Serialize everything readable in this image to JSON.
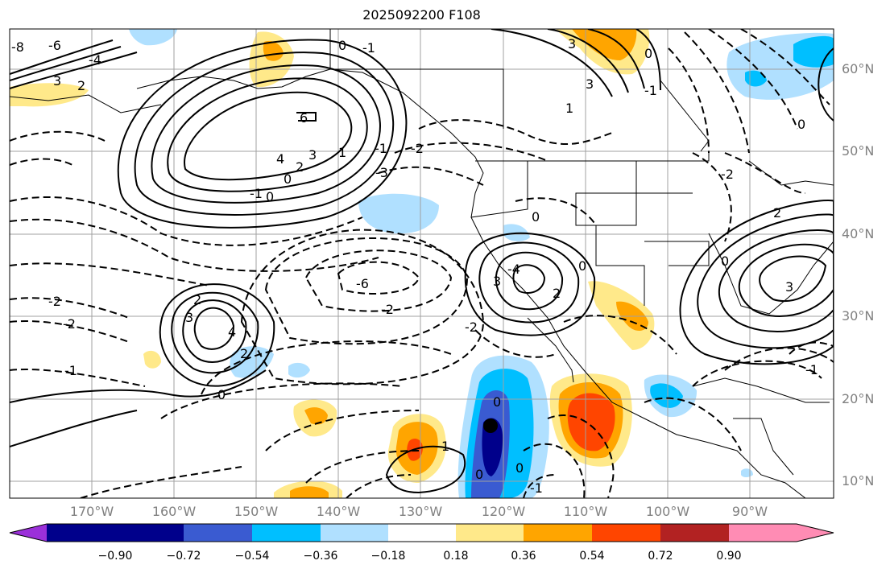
{
  "title": "2025092200 F108",
  "lat_labels": [
    "60°N",
    "50°N",
    "40°N",
    "30°N",
    "20°N",
    "10°N"
  ],
  "lon_labels": [
    "170°W",
    "160°W",
    "150°W",
    "140°W",
    "130°W",
    "120°W",
    "110°W",
    "100°W",
    "90°W"
  ],
  "colorbar": {
    "ticks": [
      "−0.90",
      "−0.72",
      "−0.54",
      "−0.36",
      "−0.18",
      "0.18",
      "0.36",
      "0.54",
      "0.72",
      "0.90"
    ],
    "colors": [
      "#9b30d9",
      "#00008b",
      "#3a5bd1",
      "#00bfff",
      "#b0e0ff",
      "#ffffff",
      "#ffe98a",
      "#ffa500",
      "#ff4500",
      "#b22222",
      "#ff8cb4"
    ]
  },
  "contour_labels": [
    "6",
    "4",
    "3",
    "2",
    "1",
    "0",
    "-1",
    "-2",
    "-3",
    "-4",
    "-6",
    "-8"
  ],
  "marker": "storm-center"
}
